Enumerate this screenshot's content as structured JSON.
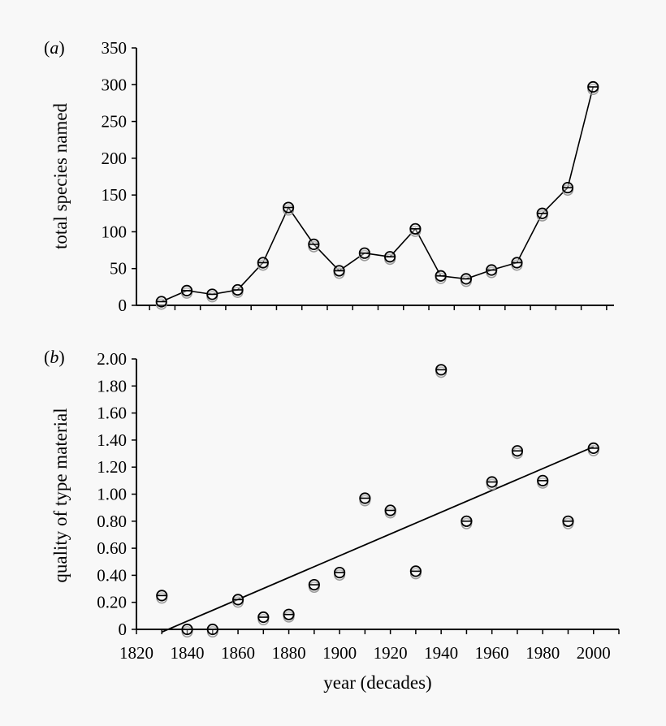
{
  "chart_data": [
    {
      "type": "line",
      "panel_label": "a",
      "title": "",
      "xlabel": "",
      "ylabel": "total species named",
      "ylim": [
        0,
        350
      ],
      "yticks": [
        "0",
        "50",
        "100",
        "150",
        "200",
        "250",
        "300",
        "350"
      ],
      "x": [
        1830,
        1840,
        1850,
        1860,
        1870,
        1880,
        1890,
        1900,
        1910,
        1920,
        1930,
        1940,
        1950,
        1960,
        1970,
        1980,
        1990,
        2000
      ],
      "values": [
        5,
        20,
        15,
        21,
        58,
        133,
        83,
        47,
        71,
        66,
        104,
        40,
        36,
        48,
        58,
        125,
        160,
        297
      ]
    },
    {
      "type": "scatter",
      "panel_label": "b",
      "title": "",
      "xlabel": "year (decades)",
      "ylabel": "quality of type material",
      "xlim": [
        1820,
        2010
      ],
      "ylim": [
        0,
        2.0
      ],
      "xticks": [
        "1820",
        "1840",
        "1860",
        "1880",
        "1900",
        "1920",
        "1940",
        "1960",
        "1980",
        "2000"
      ],
      "yticks": [
        "0",
        "0.20",
        "0.40",
        "0.60",
        "0.80",
        "1.00",
        "1.20",
        "1.40",
        "1.60",
        "1.80",
        "2.00"
      ],
      "x": [
        1830,
        1840,
        1850,
        1860,
        1870,
        1880,
        1890,
        1900,
        1910,
        1920,
        1930,
        1940,
        1950,
        1960,
        1970,
        1980,
        1990,
        2000
      ],
      "values": [
        0.25,
        0.0,
        0.0,
        0.22,
        0.09,
        0.11,
        0.33,
        0.42,
        0.97,
        0.88,
        0.43,
        1.92,
        0.8,
        1.09,
        1.32,
        1.1,
        0.8,
        1.34
      ],
      "trendline": {
        "x": [
          1830,
          2000
        ],
        "y": [
          -0.02,
          1.35
        ]
      }
    }
  ]
}
